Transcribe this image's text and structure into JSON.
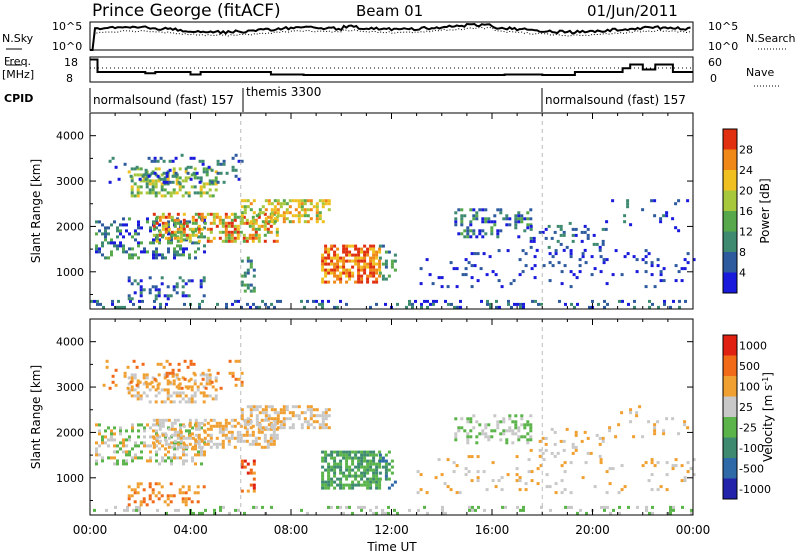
{
  "header": {
    "station": "Prince George (fitACF)",
    "beam": "Beam 01",
    "date": "01/Jun/2011"
  },
  "top_strips": {
    "nsky_label": "N.Sky",
    "nsearch_label": "N.Search",
    "noise_ticks_left": [
      "10^5",
      "10^0"
    ],
    "noise_ticks_right": [
      "10^5",
      "10^0"
    ],
    "freq_label_1": "Freq.",
    "freq_label_2": "[MHz]",
    "freq_ticks": [
      "18",
      "8"
    ],
    "nave_label": "Nave",
    "nave_ticks": [
      "60",
      "0"
    ],
    "cpid_label": "CPID",
    "cpid_segments": [
      "normalsound (fast) 157",
      "themis 3300",
      "normalsound (fast) 157"
    ]
  },
  "chart_data": [
    {
      "type": "heatmap",
      "panel": "power",
      "xlabel": "",
      "ylabel": "Slant Range [km]",
      "xlim": [
        0,
        24
      ],
      "ylim": [
        180,
        4500
      ],
      "y_ticks": [
        "1000",
        "2000",
        "3000",
        "4000"
      ],
      "colorbar_label": "Power [dB]",
      "colorbar_ticks": [
        "4",
        "8",
        "12",
        "16",
        "20",
        "24",
        "28"
      ],
      "colorbar_colors": [
        "#1a1adc",
        "#2e5a9e",
        "#3e8a70",
        "#56a84a",
        "#a8c83c",
        "#f0c020",
        "#f08818",
        "#e03010"
      ]
    },
    {
      "type": "heatmap",
      "panel": "velocity",
      "xlabel": "Time UT",
      "ylabel": "Slant Range [km]",
      "xlim": [
        0,
        24
      ],
      "ylim": [
        180,
        4500
      ],
      "x_ticks": [
        "00:00",
        "04:00",
        "08:00",
        "12:00",
        "16:00",
        "20:00",
        "00:00"
      ],
      "y_ticks": [
        "1000",
        "2000",
        "3000",
        "4000"
      ],
      "colorbar_label": "Velocity [m s",
      "colorbar_sup": "-1",
      "colorbar_ticks": [
        "1000",
        "500",
        "100",
        "25",
        "-25",
        "-100",
        "-500",
        "-1000"
      ],
      "colorbar_colors": [
        "#2222aa",
        "#2e6aa8",
        "#3e8a70",
        "#5ab44a",
        "#c8c8c8",
        "#f0a030",
        "#f06a18",
        "#e02010"
      ]
    }
  ]
}
